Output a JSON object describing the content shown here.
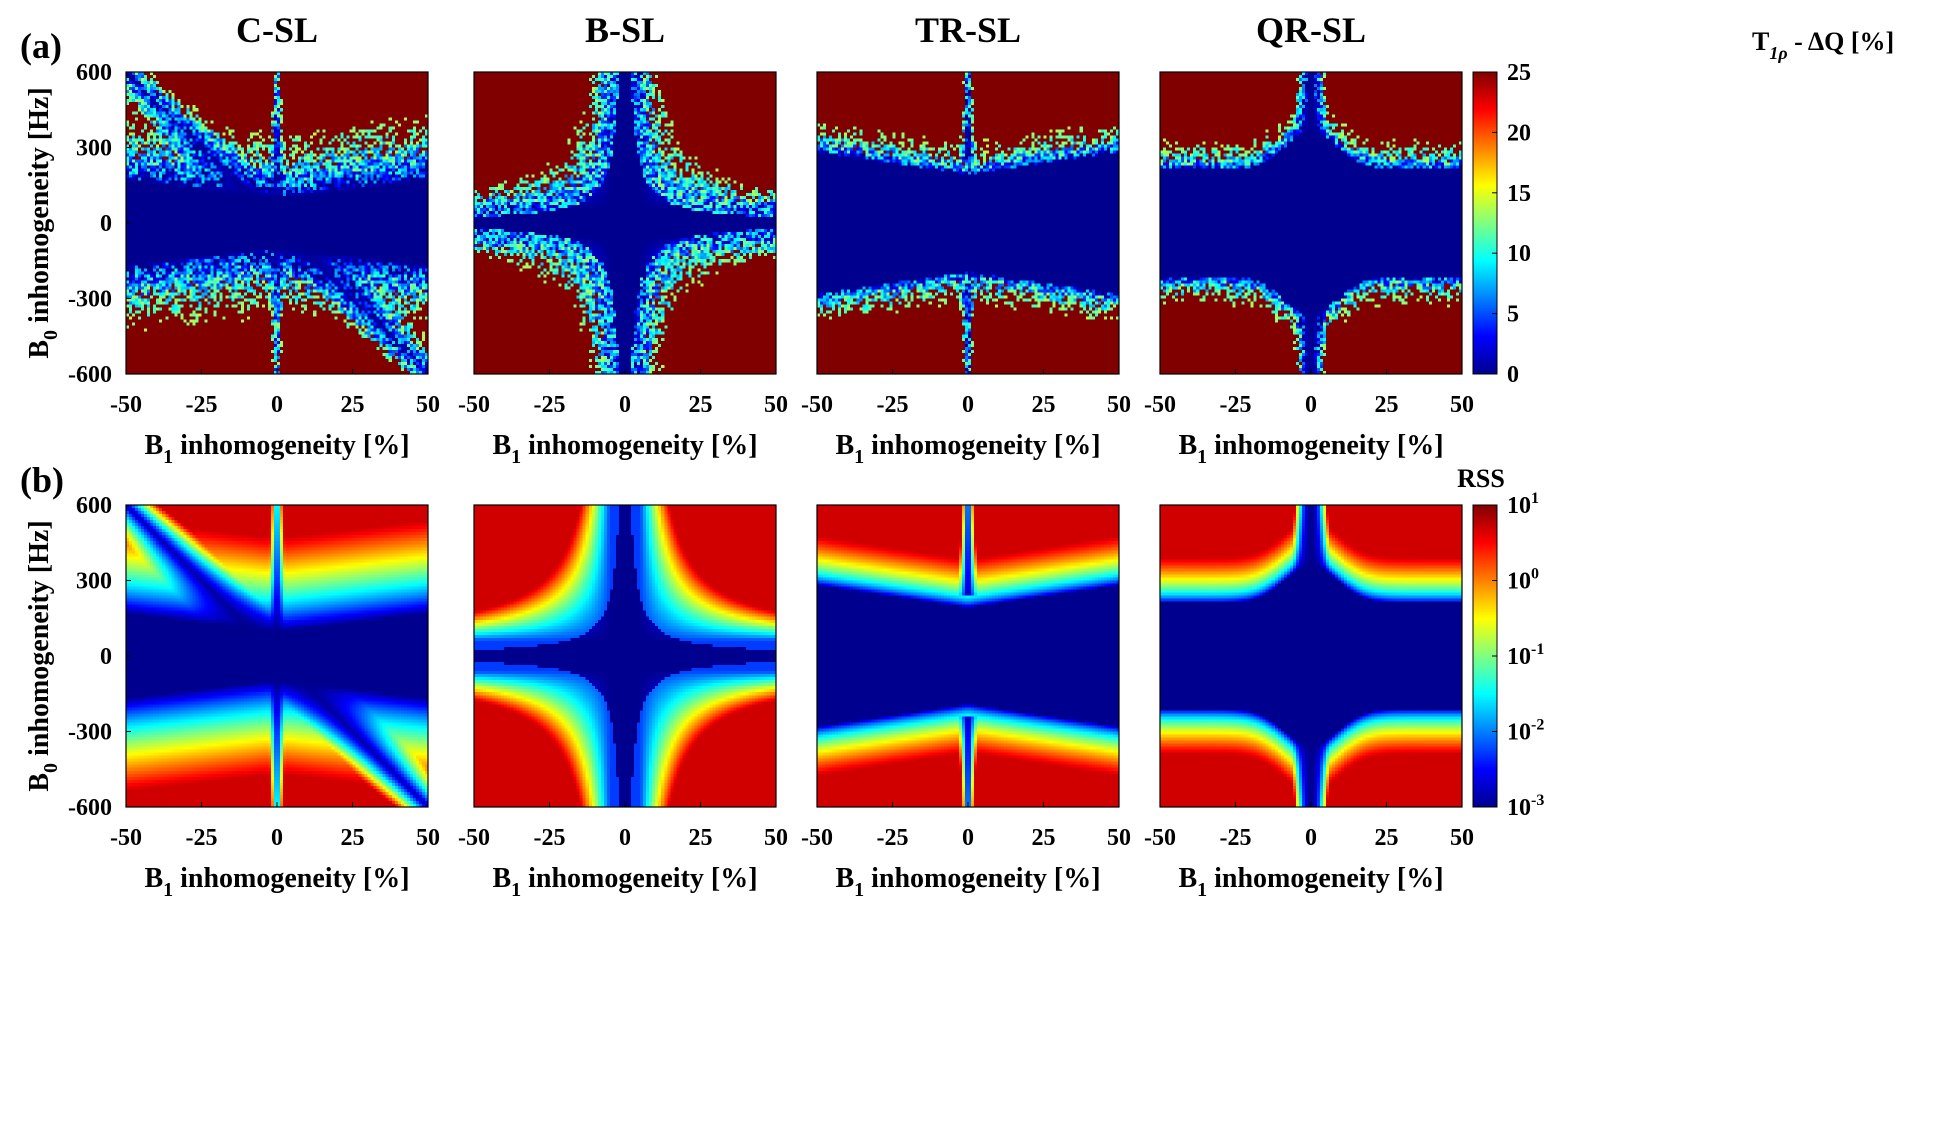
{
  "figure": {
    "colors": {
      "jet": [
        "#00008f",
        "#0000ff",
        "#0080ff",
        "#00ffff",
        "#80ff80",
        "#ffff00",
        "#ff8000",
        "#ff0000",
        "#800000"
      ]
    }
  },
  "chart_data": [
    {
      "type": "heatmap",
      "panel": "(a)",
      "title": "C-SL",
      "method": "C-SL",
      "xlabel_main": "B",
      "xlabel_sub": "1",
      "xlabel_rest": " inhomogeneity [%]",
      "ylabel_main": "B",
      "ylabel_sub": "0",
      "ylabel_rest": " inhomogeneity [Hz]",
      "xlim": [
        -50,
        50
      ],
      "ylim": [
        -600,
        600
      ],
      "xticks": [
        "-50",
        "-25",
        "0",
        "25",
        "50"
      ],
      "yticks": [
        "600",
        "300",
        "0",
        "-300",
        "-600"
      ],
      "colorscale": "jet",
      "noisy": true
    },
    {
      "type": "heatmap",
      "panel": "",
      "title": "B-SL",
      "method": "B-SL",
      "xlabel_main": "B",
      "xlabel_sub": "1",
      "xlabel_rest": " inhomogeneity [%]",
      "xlim": [
        -50,
        50
      ],
      "ylim": [
        -600,
        600
      ],
      "xticks": [
        "-50",
        "-25",
        "0",
        "25",
        "50"
      ],
      "colorscale": "jet",
      "noisy": true
    },
    {
      "type": "heatmap",
      "panel": "",
      "title": "TR-SL",
      "method": "TR-SL",
      "xlabel_main": "B",
      "xlabel_sub": "1",
      "xlabel_rest": " inhomogeneity [%]",
      "xlim": [
        -50,
        50
      ],
      "ylim": [
        -600,
        600
      ],
      "xticks": [
        "-50",
        "-25",
        "0",
        "25",
        "50"
      ],
      "colorscale": "jet",
      "noisy": true
    },
    {
      "type": "heatmap",
      "panel": "",
      "title": "QR-SL",
      "method": "QR-SL",
      "xlabel_main": "B",
      "xlabel_sub": "1",
      "xlabel_rest": " inhomogeneity [%]",
      "xlim": [
        -50,
        50
      ],
      "ylim": [
        -600,
        600
      ],
      "xticks": [
        "-50",
        "-25",
        "0",
        "25",
        "50"
      ],
      "colorscale": "jet",
      "noisy": true,
      "colorbar": {
        "label_main": "T",
        "label_sub": "1ρ",
        "label_rest": " - ΔQ [%]",
        "range": [
          0,
          25
        ],
        "ticks": [
          "25",
          "20",
          "15",
          "10",
          "5",
          "0"
        ]
      }
    },
    {
      "type": "heatmap",
      "panel": "(b)",
      "method": "C-SL",
      "xlabel_main": "B",
      "xlabel_sub": "1",
      "xlabel_rest": " inhomogeneity [%]",
      "ylabel_main": "B",
      "ylabel_sub": "0",
      "ylabel_rest": " inhomogeneity [Hz]",
      "xlim": [
        -50,
        50
      ],
      "ylim": [
        -600,
        600
      ],
      "xticks": [
        "-50",
        "-25",
        "0",
        "25",
        "50"
      ],
      "yticks": [
        "600",
        "300",
        "0",
        "-300",
        "-600"
      ],
      "colorscale": "jet",
      "noisy": false
    },
    {
      "type": "heatmap",
      "panel": "",
      "method": "B-SL",
      "xlabel_main": "B",
      "xlabel_sub": "1",
      "xlabel_rest": " inhomogeneity [%]",
      "xlim": [
        -50,
        50
      ],
      "ylim": [
        -600,
        600
      ],
      "xticks": [
        "-50",
        "-25",
        "0",
        "25",
        "50"
      ],
      "colorscale": "jet",
      "noisy": false
    },
    {
      "type": "heatmap",
      "panel": "",
      "method": "TR-SL",
      "xlabel_main": "B",
      "xlabel_sub": "1",
      "xlabel_rest": " inhomogeneity [%]",
      "xlim": [
        -50,
        50
      ],
      "ylim": [
        -600,
        600
      ],
      "xticks": [
        "-50",
        "-25",
        "0",
        "25",
        "50"
      ],
      "colorscale": "jet",
      "noisy": false
    },
    {
      "type": "heatmap",
      "panel": "",
      "method": "QR-SL",
      "xlabel_main": "B",
      "xlabel_sub": "1",
      "xlabel_rest": " inhomogeneity [%]",
      "xlim": [
        -50,
        50
      ],
      "ylim": [
        -600,
        600
      ],
      "xticks": [
        "-50",
        "-25",
        "0",
        "25",
        "50"
      ],
      "colorscale": "jet",
      "noisy": false,
      "colorbar": {
        "label": "RSS",
        "scale": "log",
        "range": [
          0.001,
          10
        ],
        "ticks": [
          {
            "base": "10",
            "exp": "1"
          },
          {
            "base": "10",
            "exp": "0"
          },
          {
            "base": "10",
            "exp": "-1"
          },
          {
            "base": "10",
            "exp": "-2"
          },
          {
            "base": "10",
            "exp": "-3"
          }
        ]
      }
    }
  ]
}
